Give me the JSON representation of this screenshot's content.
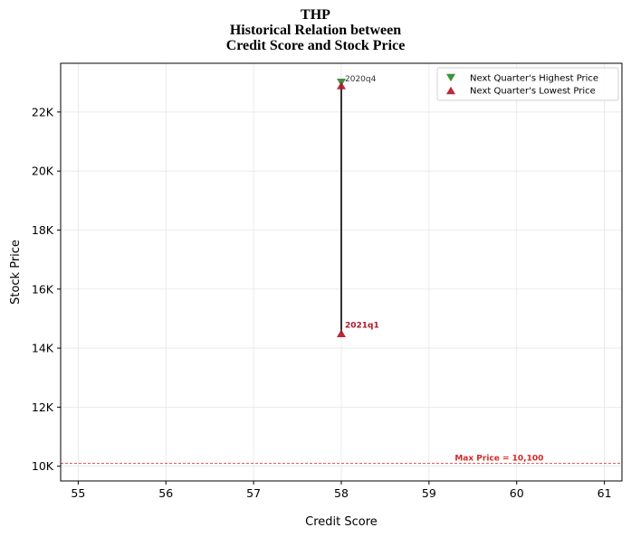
{
  "chart_data": {
    "type": "scatter",
    "title_lines": [
      "THP",
      "Historical Relation between",
      "Credit Score and Stock Price"
    ],
    "xlabel": "Credit Score",
    "ylabel": "Stock Price",
    "xlim": [
      54.8,
      61.2
    ],
    "ylim": [
      9500,
      23650
    ],
    "x_ticks": [
      55,
      56,
      57,
      58,
      59,
      60,
      61
    ],
    "x_tick_labels": [
      "55",
      "56",
      "57",
      "58",
      "59",
      "60",
      "61"
    ],
    "y_ticks": [
      10000,
      12000,
      14000,
      16000,
      18000,
      20000,
      22000
    ],
    "y_tick_labels": [
      "10K",
      "12K",
      "14K",
      "16K",
      "18K",
      "20K",
      "22K"
    ],
    "grid": true,
    "legend_position": "top-right",
    "series": [
      {
        "name": "Next Quarter's Highest Price",
        "marker": "triangle-down",
        "color": "#2e8b2e",
        "points": [
          {
            "x": 58,
            "y": 23000,
            "label": "2020q4"
          }
        ]
      },
      {
        "name": "Next Quarter's Lowest Price",
        "marker": "triangle-up",
        "color": "#b2182b",
        "points": [
          {
            "x": 58,
            "y": 22900
          },
          {
            "x": 58,
            "y": 14500,
            "label": "2021q1"
          }
        ]
      }
    ],
    "connector": {
      "x": 58,
      "y_from": 23000,
      "y_to": 14500,
      "color": "#000000"
    },
    "reference_line": {
      "y": 10100,
      "label": "Max Price = 10,100",
      "color": "#d62728"
    }
  }
}
